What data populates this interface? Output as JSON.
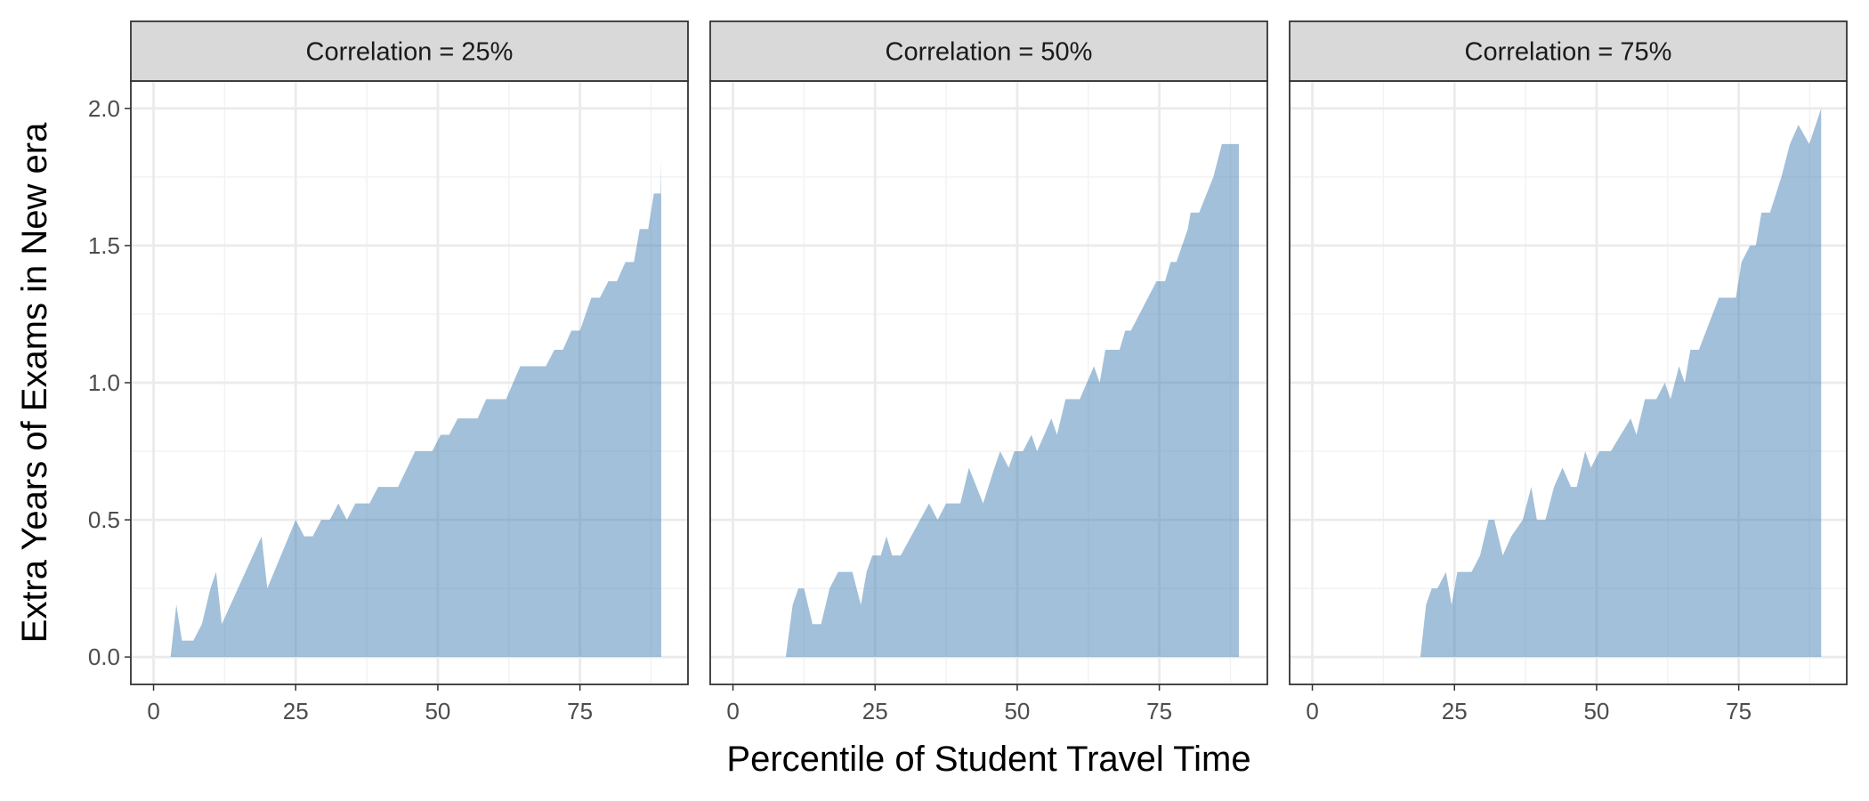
{
  "axis_titles": {
    "x": "Percentile of Student Travel Time",
    "y": "Extra Years of Exams in New era"
  },
  "chart_data": [
    {
      "type": "area",
      "title": "Correlation = 25%",
      "color": "#4682b4",
      "alpha": 0.5,
      "x": [
        3,
        4,
        5,
        7,
        8.5,
        10,
        11,
        12,
        19,
        20,
        25,
        26.5,
        28,
        29.5,
        31,
        32.5,
        34,
        35.5,
        38,
        39.5,
        43,
        46,
        49,
        50.5,
        52,
        53.5,
        57,
        58.5,
        62,
        64.5,
        69,
        70.5,
        72,
        73.5,
        75,
        77,
        78.5,
        80,
        81.5,
        83,
        84.5,
        85.5,
        87,
        88,
        89.2,
        89.3
      ],
      "values": [
        0,
        0.19,
        0.06,
        0.06,
        0.12,
        0.25,
        0.31,
        0.12,
        0.44,
        0.25,
        0.5,
        0.44,
        0.44,
        0.5,
        0.5,
        0.56,
        0.5,
        0.56,
        0.56,
        0.62,
        0.62,
        0.75,
        0.75,
        0.81,
        0.81,
        0.87,
        0.87,
        0.94,
        0.94,
        1.06,
        1.06,
        1.12,
        1.12,
        1.19,
        1.19,
        1.31,
        1.31,
        1.37,
        1.37,
        1.44,
        1.44,
        1.56,
        1.56,
        1.69,
        1.69,
        1.81
      ],
      "xlim": [
        -4,
        94
      ],
      "ylim": [
        -0.1,
        2.1
      ],
      "xticks": [
        0,
        25,
        50,
        75
      ],
      "yticks": [
        {
          "value": 0,
          "label": "0.0"
        },
        0.5,
        {
          "value": 1,
          "label": "1.0"
        },
        1.5,
        {
          "value": 2,
          "label": "2.0"
        }
      ],
      "x_minor_grid": [
        12.5,
        37.5,
        62.5,
        87.5
      ],
      "y_minor_grid": [
        0.25,
        0.75,
        1.25,
        1.75
      ]
    },
    {
      "type": "area",
      "title": "Correlation = 50%",
      "color": "#4682b4",
      "alpha": 0.5,
      "x": [
        9.3,
        10.5,
        11.5,
        12.5,
        14,
        15.5,
        17,
        18.5,
        21,
        22.5,
        23.5,
        24.5,
        26,
        27,
        28,
        29.5,
        34.5,
        36,
        37.5,
        40,
        41.5,
        44,
        46,
        47,
        48.5,
        49.5,
        51,
        52.5,
        53.5,
        56,
        57,
        58.5,
        61,
        63.5,
        64.5,
        65.5,
        68,
        69,
        70,
        74.5,
        76,
        77,
        78,
        80,
        80.5,
        82,
        84.5,
        86,
        87,
        89
      ],
      "values": [
        0,
        0.19,
        0.25,
        0.25,
        0.12,
        0.12,
        0.25,
        0.31,
        0.31,
        0.19,
        0.31,
        0.37,
        0.37,
        0.44,
        0.37,
        0.37,
        0.56,
        0.5,
        0.56,
        0.56,
        0.69,
        0.56,
        0.69,
        0.75,
        0.69,
        0.75,
        0.75,
        0.81,
        0.75,
        0.87,
        0.81,
        0.94,
        0.94,
        1.06,
        1.0,
        1.12,
        1.12,
        1.19,
        1.19,
        1.37,
        1.37,
        1.44,
        1.44,
        1.56,
        1.62,
        1.62,
        1.75,
        1.87,
        1.87,
        1.87
      ],
      "xlim": [
        -4,
        94
      ],
      "ylim": [
        -0.1,
        2.1
      ],
      "xticks": [
        0,
        25,
        50,
        75
      ],
      "yticks": [
        {
          "value": 0,
          "label": "0.0"
        },
        0.5,
        {
          "value": 1,
          "label": "1.0"
        },
        1.5,
        {
          "value": 2,
          "label": "2.0"
        }
      ],
      "x_minor_grid": [
        12.5,
        37.5,
        62.5,
        87.5
      ],
      "y_minor_grid": [
        0.25,
        0.75,
        1.25,
        1.75
      ]
    },
    {
      "type": "area",
      "title": "Correlation = 75%",
      "color": "#4682b4",
      "alpha": 0.5,
      "x": [
        19,
        20,
        21,
        22,
        23.5,
        24.5,
        25.5,
        28,
        29.5,
        31,
        32,
        33.5,
        35,
        37,
        38.5,
        39.5,
        41,
        42.5,
        44,
        45.5,
        46.5,
        48,
        49,
        50.5,
        52.5,
        56,
        57,
        58.5,
        60.5,
        62,
        63,
        64.5,
        65.5,
        66.5,
        68,
        71.5,
        74.5,
        75.5,
        77,
        78,
        79,
        80.5,
        82.5,
        84,
        85.5,
        87.4,
        89.5
      ],
      "values": [
        0,
        0.19,
        0.25,
        0.25,
        0.31,
        0.19,
        0.31,
        0.31,
        0.37,
        0.5,
        0.5,
        0.37,
        0.44,
        0.5,
        0.62,
        0.5,
        0.5,
        0.62,
        0.69,
        0.62,
        0.62,
        0.75,
        0.69,
        0.75,
        0.75,
        0.87,
        0.81,
        0.94,
        0.94,
        1.0,
        0.94,
        1.06,
        1.0,
        1.12,
        1.12,
        1.31,
        1.31,
        1.44,
        1.5,
        1.5,
        1.62,
        1.62,
        1.75,
        1.87,
        1.94,
        1.87,
        2.0
      ],
      "xlim": [
        -4,
        94
      ],
      "ylim": [
        -0.1,
        2.1
      ],
      "xticks": [
        0,
        25,
        50,
        75
      ],
      "yticks": [
        {
          "value": 0,
          "label": "0.0"
        },
        0.5,
        {
          "value": 1,
          "label": "1.0"
        },
        1.5,
        {
          "value": 2,
          "label": "2.0"
        }
      ],
      "x_minor_grid": [
        12.5,
        37.5,
        62.5,
        87.5
      ],
      "y_minor_grid": [
        0.25,
        0.75,
        1.25,
        1.75
      ]
    }
  ]
}
